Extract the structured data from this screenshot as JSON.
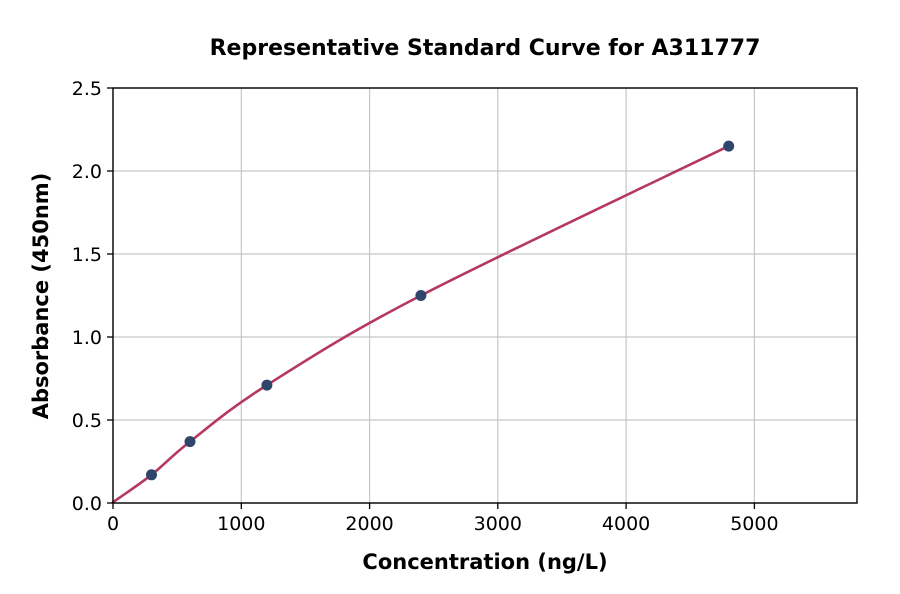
{
  "chart_data": {
    "type": "scatter",
    "title": "Representative Standard Curve for A311777",
    "xlabel": "Concentration (ng/L)",
    "ylabel": "Absorbance (450nm)",
    "xlim": [
      0,
      5800
    ],
    "ylim": [
      0,
      2.5
    ],
    "x_ticks": [
      0,
      1000,
      2000,
      3000,
      4000,
      5000
    ],
    "x_tick_labels": [
      "0",
      "1000",
      "2000",
      "3000",
      "4000",
      "5000"
    ],
    "y_ticks": [
      0.0,
      0.5,
      1.0,
      1.5,
      2.0,
      2.5
    ],
    "y_tick_labels": [
      "0.0",
      "0.5",
      "1.0",
      "1.5",
      "2.0",
      "2.5"
    ],
    "grid": true,
    "legend": "none",
    "curve_start": {
      "x": 0,
      "y": 0.005
    },
    "points": {
      "x": [
        300,
        600,
        1200,
        2400,
        4800
      ],
      "y": [
        0.17,
        0.37,
        0.71,
        1.25,
        2.15
      ]
    },
    "colors": {
      "line": "#b5385f",
      "marker": "#30456a",
      "grid": "#c6c6c6",
      "spine": "#000000",
      "background": "#ffffff"
    }
  }
}
